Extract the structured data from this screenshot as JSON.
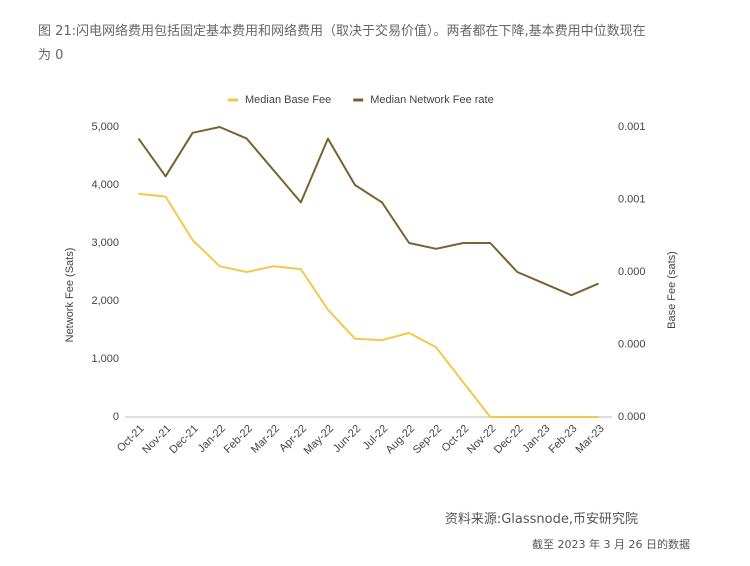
{
  "figure_title": "图 21:闪电网络费用包括固定基本费用和网络费用（取决于交易价值）。两者都在下降,基本费用中位数现在为 0",
  "source": "资料来源:Glassnode,币安研究院",
  "note": "截至 2023 年 3 月 26 日的数据",
  "chart_data": {
    "type": "line",
    "ylabel": "Network Fee (Sats)",
    "y2label": "Base Fee (sats)",
    "categories": [
      "Oct-21",
      "Nov-21",
      "Dec-21",
      "Jan-22",
      "Feb-22",
      "Mar-22",
      "Apr-22",
      "May-22",
      "Jun-22",
      "Jul-22",
      "Aug-22",
      "Sep-22",
      "Oct-22",
      "Nov-22",
      "Dec-22",
      "Jan-23",
      "Feb-23",
      "Mar-23"
    ],
    "series": [
      {
        "name": "Median Base Fee",
        "color": "#f2c94c",
        "axis": "y2",
        "values": [
          0.00077,
          0.00076,
          0.00061,
          0.00052,
          0.0005,
          0.00052,
          0.00051,
          0.00037,
          0.00027,
          0.000265,
          0.00029,
          0.00024,
          0.00012,
          0,
          0,
          0,
          0,
          0
        ]
      },
      {
        "name": "Median Network Fee rate",
        "color": "#7a6230",
        "values": [
          4800,
          4150,
          4900,
          5000,
          4800,
          4250,
          3700,
          4800,
          4000,
          3700,
          3000,
          2900,
          3000,
          3000,
          2500,
          2300,
          2100,
          2300
        ]
      }
    ],
    "ylim": [
      0,
      5000
    ],
    "yticks": [
      0,
      {
        "value": 1000,
        "label": "1,000"
      },
      {
        "value": 2000,
        "label": "2,000"
      },
      {
        "value": 3000,
        "label": "3,000"
      },
      {
        "value": 4000,
        "label": "4,000"
      },
      {
        "value": 5000,
        "label": "5,000"
      }
    ],
    "y2lim": [
      0,
      0.001
    ],
    "y2ticks": [
      {
        "value": 0,
        "label": "0.000"
      },
      {
        "value": 0.00025,
        "label": "0.000"
      },
      {
        "value": 0.0005,
        "label": "0.000"
      },
      {
        "value": 0.00075,
        "label": "0.001"
      },
      {
        "value": 0.001,
        "label": "0.001"
      }
    ],
    "legend": "top",
    "grid": false
  }
}
